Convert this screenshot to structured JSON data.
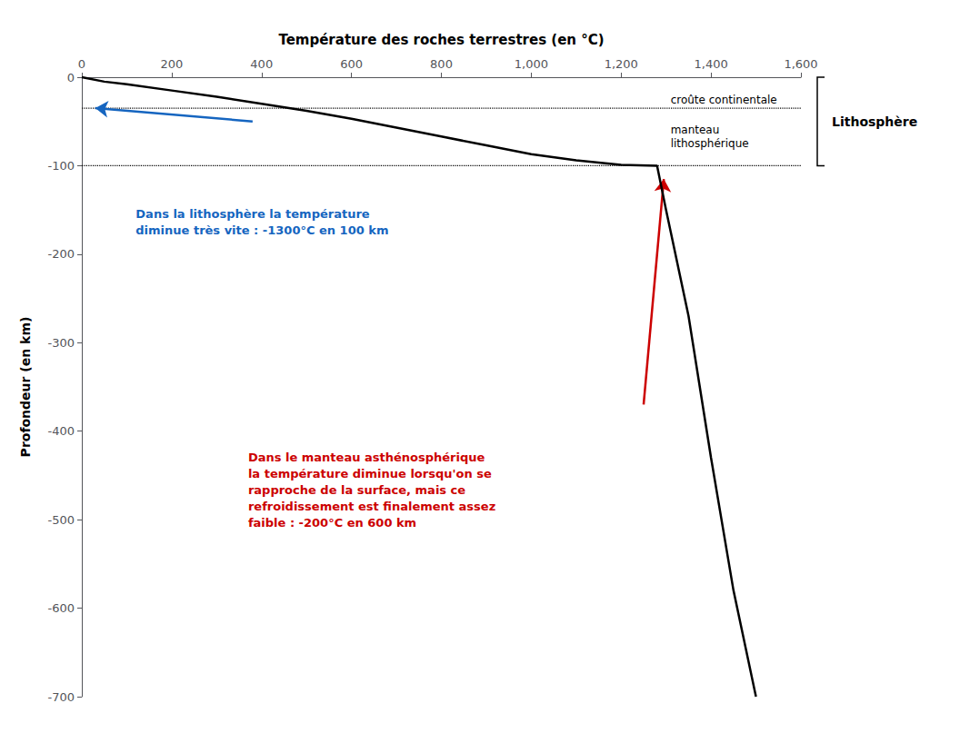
{
  "chart_data": {
    "type": "line",
    "xlabel": "Température des roches terrestres (en °C)",
    "ylabel": "Profondeur (en km)",
    "xlim": [
      0,
      1600
    ],
    "ylim": [
      -700,
      0
    ],
    "xticks": [
      0,
      200,
      400,
      600,
      800,
      1000,
      1200,
      1400,
      1600
    ],
    "yticks": [
      0,
      -100,
      -200,
      -300,
      -400,
      -500,
      -600,
      -700
    ],
    "grid": false,
    "x": [
      0,
      50,
      100,
      200,
      300,
      400,
      500,
      600,
      700,
      800,
      900,
      1000,
      1100,
      1200,
      1280,
      1300,
      1350,
      1400,
      1450,
      1500
    ],
    "values": [
      0,
      -5,
      -8,
      -15,
      -22,
      -30,
      -38,
      -47,
      -57,
      -67,
      -77,
      -87,
      -94,
      -99,
      -100,
      -150,
      -270,
      -430,
      -580,
      -700
    ],
    "color": "#000000",
    "reference_lines": {
      "y": [
        -35,
        -100
      ],
      "line_style": "dotted",
      "color": "#000000",
      "labels": [
        "croûte continentale",
        "manteau\nlithosphérique"
      ]
    },
    "bracket": {
      "label": "Lithosphère",
      "y": [
        0,
        -100
      ]
    },
    "annotations": [
      {
        "text": "Dans la lithosphère la température\ndiminue très vite : -1300°C en 100 km",
        "color": "#1565C0",
        "arrow_from": [
          380,
          -50
        ],
        "arrow_to": [
          30,
          -35
        ]
      },
      {
        "text": "Dans le manteau asthénosphérique\nla température diminue lorsqu'on se\nrapproche de la surface, mais ce\nrefroidissement est finalement assez\nfaible : -200°C en 600 km",
        "color": "#CC0000",
        "arrow_from": [
          1250,
          -370
        ],
        "arrow_to": [
          1295,
          -115
        ]
      }
    ]
  }
}
